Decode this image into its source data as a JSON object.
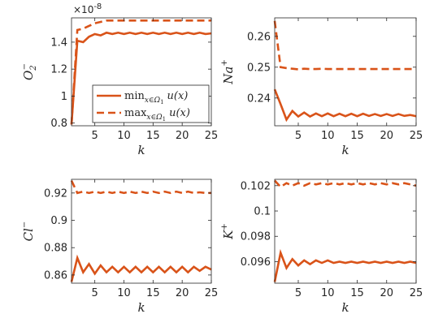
{
  "colors": {
    "series": "#D95319",
    "axis": "#262626"
  },
  "chart_data": [
    {
      "type": "line",
      "ylabel_main": "O",
      "ylabel_sub": "2",
      "ylabel_sup": "−",
      "xlabel": "k",
      "exponent_label": "×10",
      "exponent_power": "-8",
      "xlim": [
        1,
        25
      ],
      "ylim": [
        0.78,
        1.58
      ],
      "xticks": [
        "5",
        "10",
        "15",
        "20",
        "25"
      ],
      "yticks": [
        "0.8",
        "1",
        "1.2",
        "1.4"
      ],
      "x": [
        1,
        2,
        3,
        4,
        5,
        6,
        7,
        8,
        9,
        10,
        11,
        12,
        13,
        14,
        15,
        16,
        17,
        18,
        19,
        20,
        21,
        22,
        23,
        24,
        25
      ],
      "series": [
        {
          "key": "min",
          "style": "solid",
          "values": [
            0.79,
            1.41,
            1.4,
            1.44,
            1.46,
            1.45,
            1.47,
            1.46,
            1.47,
            1.46,
            1.47,
            1.46,
            1.47,
            1.46,
            1.47,
            1.46,
            1.47,
            1.46,
            1.47,
            1.46,
            1.47,
            1.46,
            1.47,
            1.46,
            1.465
          ]
        },
        {
          "key": "max",
          "style": "dashed",
          "values": [
            0.79,
            1.49,
            1.5,
            1.52,
            1.54,
            1.55,
            1.56,
            1.56,
            1.56,
            1.56,
            1.56,
            1.56,
            1.56,
            1.56,
            1.56,
            1.56,
            1.56,
            1.56,
            1.56,
            1.56,
            1.56,
            1.56,
            1.56,
            1.56,
            1.56
          ]
        }
      ],
      "legend": {
        "placement": "lower-right",
        "entries": [
          {
            "op": "min",
            "sub": "x∈Ω",
            "subsub": "1",
            "expr": "u(x)",
            "style": "solid"
          },
          {
            "op": "max",
            "sub": "x∈Ω",
            "subsub": "1",
            "expr": "u(x)",
            "style": "dashed"
          }
        ]
      }
    },
    {
      "type": "line",
      "ylabel_main": "Na",
      "ylabel_sup": "+",
      "xlabel": "k",
      "xlim": [
        1,
        25
      ],
      "ylim": [
        0.231,
        0.266
      ],
      "xticks": [
        "5",
        "10",
        "15",
        "20",
        "25"
      ],
      "yticks": [
        "0.24",
        "0.25",
        "0.26"
      ],
      "x": [
        1,
        2,
        3,
        4,
        5,
        6,
        7,
        8,
        9,
        10,
        11,
        12,
        13,
        14,
        15,
        16,
        17,
        18,
        19,
        20,
        21,
        22,
        23,
        24,
        25
      ],
      "series": [
        {
          "key": "min",
          "style": "solid",
          "values": [
            0.2428,
            0.238,
            0.233,
            0.2358,
            0.234,
            0.2353,
            0.234,
            0.235,
            0.2341,
            0.235,
            0.2341,
            0.2349,
            0.2341,
            0.2349,
            0.2341,
            0.2349,
            0.2342,
            0.2348,
            0.2342,
            0.2348,
            0.2342,
            0.2348,
            0.2342,
            0.2345,
            0.2341
          ]
        },
        {
          "key": "max",
          "style": "dashed",
          "values": [
            0.265,
            0.25,
            0.2497,
            0.2495,
            0.2493,
            0.2495,
            0.2494,
            0.2494,
            0.2495,
            0.2494,
            0.2494,
            0.2494,
            0.2494,
            0.2494,
            0.2494,
            0.2494,
            0.2494,
            0.2494,
            0.2494,
            0.2494,
            0.2494,
            0.2494,
            0.2494,
            0.2494,
            0.2494
          ]
        }
      ]
    },
    {
      "type": "line",
      "ylabel_main": "Cl",
      "ylabel_sup": "−",
      "xlabel": "k",
      "xlim": [
        1,
        25
      ],
      "ylim": [
        0.854,
        0.93
      ],
      "xticks": [
        "5",
        "10",
        "15",
        "20",
        "25"
      ],
      "yticks": [
        "0.86",
        "0.88",
        "0.9",
        "0.92"
      ],
      "x": [
        1,
        2,
        3,
        4,
        5,
        6,
        7,
        8,
        9,
        10,
        11,
        12,
        13,
        14,
        15,
        16,
        17,
        18,
        19,
        20,
        21,
        22,
        23,
        24,
        25
      ],
      "series": [
        {
          "key": "min",
          "style": "solid",
          "values": [
            0.855,
            0.8725,
            0.862,
            0.868,
            0.861,
            0.867,
            0.862,
            0.866,
            0.862,
            0.866,
            0.862,
            0.866,
            0.862,
            0.866,
            0.862,
            0.866,
            0.862,
            0.866,
            0.862,
            0.866,
            0.862,
            0.866,
            0.863,
            0.866,
            0.864
          ]
        },
        {
          "key": "max",
          "style": "dashed",
          "values": [
            0.929,
            0.92,
            0.921,
            0.92,
            0.921,
            0.92,
            0.921,
            0.92,
            0.921,
            0.92,
            0.921,
            0.92,
            0.921,
            0.92,
            0.921,
            0.92,
            0.921,
            0.92,
            0.921,
            0.92,
            0.921,
            0.92,
            0.9205,
            0.92,
            0.92
          ]
        }
      ]
    },
    {
      "type": "line",
      "ylabel_main": "K",
      "ylabel_sup": "+",
      "xlabel": "k",
      "xlim": [
        1,
        25
      ],
      "ylim": [
        0.0943,
        0.1025
      ],
      "xticks": [
        "5",
        "10",
        "15",
        "20",
        "25"
      ],
      "yticks": [
        "0.096",
        "0.098",
        "0.1",
        "0.102"
      ],
      "x": [
        1,
        2,
        3,
        4,
        5,
        6,
        7,
        8,
        9,
        10,
        11,
        12,
        13,
        14,
        15,
        16,
        17,
        18,
        19,
        20,
        21,
        22,
        23,
        24,
        25
      ],
      "series": [
        {
          "key": "min",
          "style": "solid",
          "values": [
            0.0944,
            0.0967,
            0.0955,
            0.0962,
            0.0957,
            0.0961,
            0.0958,
            0.0961,
            0.0959,
            0.0961,
            0.0959,
            0.096,
            0.0959,
            0.096,
            0.0959,
            0.096,
            0.0959,
            0.096,
            0.0959,
            0.096,
            0.0959,
            0.096,
            0.0959,
            0.096,
            0.0959
          ]
        },
        {
          "key": "max",
          "style": "dashed",
          "values": [
            0.1024,
            0.1019,
            0.1022,
            0.102,
            0.1022,
            0.102,
            0.1022,
            0.1021,
            0.1022,
            0.1021,
            0.1022,
            0.1021,
            0.1022,
            0.1021,
            0.1022,
            0.1021,
            0.1022,
            0.1021,
            0.1022,
            0.1021,
            0.1022,
            0.1021,
            0.1022,
            0.1021,
            0.102
          ]
        }
      ]
    }
  ]
}
